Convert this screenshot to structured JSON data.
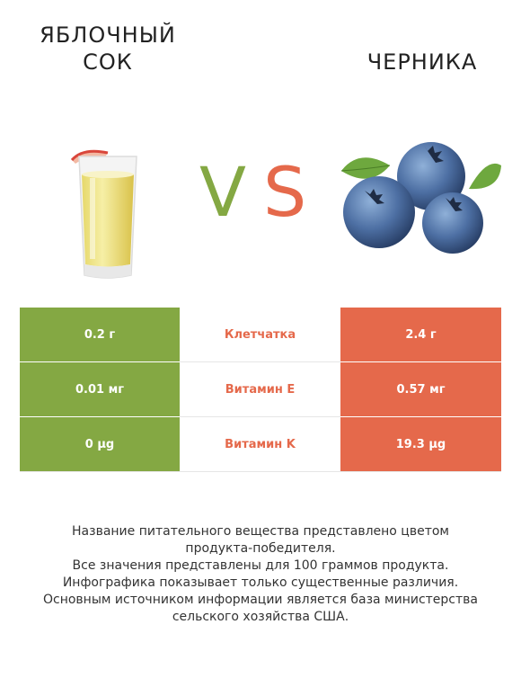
{
  "header": {
    "left_title": [
      "ЯБЛОЧНЫЙ",
      "СОК"
    ],
    "right_title": "ЧЕРНИКА",
    "vs": {
      "v": "V",
      "s": "S"
    }
  },
  "colors": {
    "left": "#84a843",
    "right": "#e5694b"
  },
  "images": {
    "left": "apple-juice-glass",
    "right": "blueberries"
  },
  "table": {
    "rows": [
      {
        "left": "0.2 г",
        "nutrient": "Клетчатка",
        "right": "2.4 г"
      },
      {
        "left": "0.01 мг",
        "nutrient": "Витамин E",
        "right": "0.57 мг"
      },
      {
        "left": "0 µg",
        "nutrient": "Витамин K",
        "right": "19.3 µg"
      }
    ]
  },
  "footer": {
    "lines": [
      "Название питательного вещества представлено цветом",
      "продукта-победителя.",
      "Все значения представлены для 100 граммов продукта.",
      "Инфографика показывает только существенные различия.",
      "Основным источником информации является база министерства",
      "сельского хозяйства США."
    ]
  }
}
